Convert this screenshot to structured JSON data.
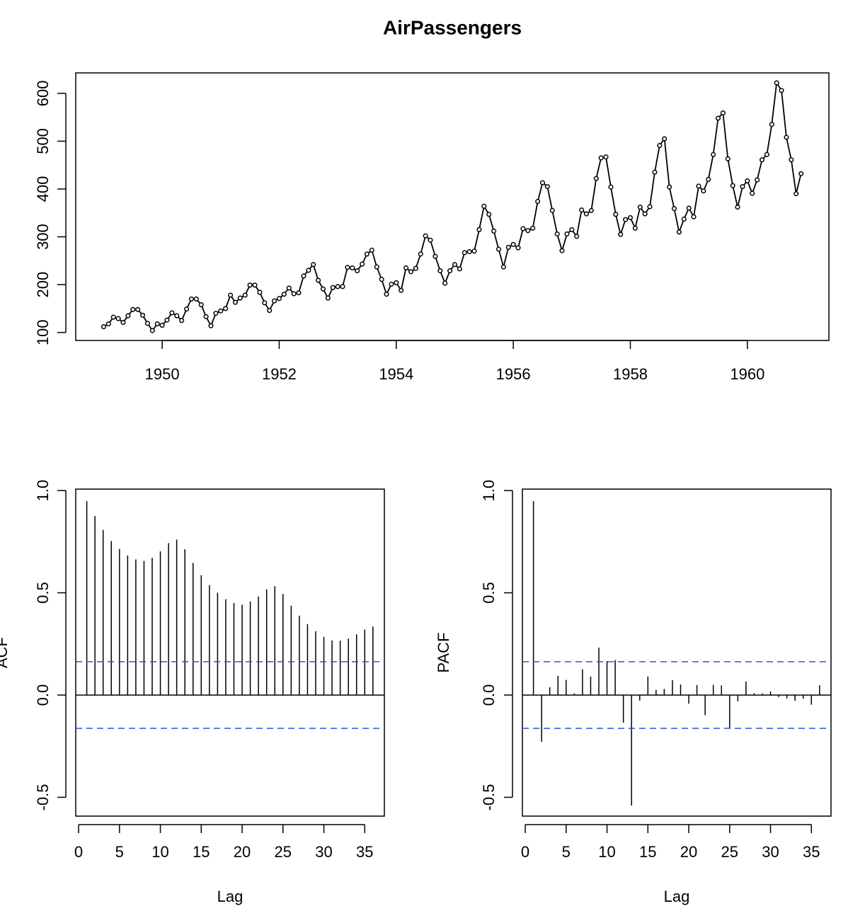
{
  "chart_data": [
    {
      "type": "line",
      "title": "AirPassengers",
      "x": [
        1949.0,
        1949.083,
        1949.167,
        1949.25,
        1949.333,
        1949.417,
        1949.5,
        1949.583,
        1949.667,
        1949.75,
        1949.833,
        1949.917,
        1950.0,
        1950.083,
        1950.167,
        1950.25,
        1950.333,
        1950.417,
        1950.5,
        1950.583,
        1950.667,
        1950.75,
        1950.833,
        1950.917,
        1951.0,
        1951.083,
        1951.167,
        1951.25,
        1951.333,
        1951.417,
        1951.5,
        1951.583,
        1951.667,
        1951.75,
        1951.833,
        1951.917,
        1952.0,
        1952.083,
        1952.167,
        1952.25,
        1952.333,
        1952.417,
        1952.5,
        1952.583,
        1952.667,
        1952.75,
        1952.833,
        1952.917,
        1953.0,
        1953.083,
        1953.167,
        1953.25,
        1953.333,
        1953.417,
        1953.5,
        1953.583,
        1953.667,
        1953.75,
        1953.833,
        1953.917,
        1954.0,
        1954.083,
        1954.167,
        1954.25,
        1954.333,
        1954.417,
        1954.5,
        1954.583,
        1954.667,
        1954.75,
        1954.833,
        1954.917,
        1955.0,
        1955.083,
        1955.167,
        1955.25,
        1955.333,
        1955.417,
        1955.5,
        1955.583,
        1955.667,
        1955.75,
        1955.833,
        1955.917,
        1956.0,
        1956.083,
        1956.167,
        1956.25,
        1956.333,
        1956.417,
        1956.5,
        1956.583,
        1956.667,
        1956.75,
        1956.833,
        1956.917,
        1957.0,
        1957.083,
        1957.167,
        1957.25,
        1957.333,
        1957.417,
        1957.5,
        1957.583,
        1957.667,
        1957.75,
        1957.833,
        1957.917,
        1958.0,
        1958.083,
        1958.167,
        1958.25,
        1958.333,
        1958.417,
        1958.5,
        1958.583,
        1958.667,
        1958.75,
        1958.833,
        1958.917,
        1959.0,
        1959.083,
        1959.167,
        1959.25,
        1959.333,
        1959.417,
        1959.5,
        1959.583,
        1959.667,
        1959.75,
        1959.833,
        1959.917,
        1960.0,
        1960.083,
        1960.167,
        1960.25,
        1960.333,
        1960.417,
        1960.5,
        1960.583,
        1960.667,
        1960.75,
        1960.833,
        1960.917
      ],
      "values": [
        112,
        118,
        132,
        129,
        121,
        135,
        148,
        148,
        136,
        119,
        104,
        118,
        115,
        126,
        141,
        135,
        125,
        149,
        170,
        170,
        158,
        133,
        114,
        140,
        145,
        150,
        178,
        163,
        172,
        178,
        199,
        199,
        184,
        162,
        146,
        166,
        171,
        180,
        193,
        181,
        183,
        218,
        230,
        242,
        209,
        191,
        172,
        194,
        196,
        196,
        236,
        235,
        229,
        243,
        264,
        272,
        237,
        211,
        180,
        201,
        204,
        188,
        235,
        227,
        234,
        264,
        302,
        293,
        259,
        229,
        203,
        229,
        242,
        233,
        267,
        269,
        270,
        315,
        364,
        347,
        312,
        274,
        237,
        278,
        284,
        277,
        317,
        313,
        318,
        374,
        413,
        405,
        355,
        306,
        271,
        306,
        315,
        301,
        356,
        348,
        355,
        422,
        465,
        467,
        404,
        347,
        305,
        336,
        340,
        318,
        362,
        348,
        363,
        435,
        491,
        505,
        404,
        359,
        310,
        337,
        360,
        342,
        406,
        396,
        420,
        472,
        548,
        559,
        463,
        407,
        362,
        405,
        417,
        391,
        419,
        461,
        472,
        535,
        622,
        606,
        508,
        461,
        390,
        432
      ],
      "color": "#000000",
      "xlim": [
        1948.523,
        1961.393
      ],
      "ylim": [
        83.28,
        642.72
      ],
      "xticks": [
        1950,
        1952,
        1954,
        1956,
        1958,
        1960
      ],
      "yticks": [
        100,
        200,
        300,
        400,
        500,
        600
      ]
    },
    {
      "type": "stem",
      "xlabel": "Lag",
      "ylabel": "ACF",
      "x": [
        1,
        2,
        3,
        4,
        5,
        6,
        7,
        8,
        9,
        10,
        11,
        12,
        13,
        14,
        15,
        16,
        17,
        18,
        19,
        20,
        21,
        22,
        23,
        24,
        25,
        26,
        27,
        28,
        29,
        30,
        31,
        32,
        33,
        34,
        35,
        36
      ],
      "values": [
        0.948,
        0.876,
        0.807,
        0.753,
        0.714,
        0.682,
        0.663,
        0.656,
        0.671,
        0.703,
        0.743,
        0.76,
        0.713,
        0.646,
        0.586,
        0.538,
        0.5,
        0.469,
        0.45,
        0.442,
        0.457,
        0.482,
        0.517,
        0.532,
        0.494,
        0.437,
        0.388,
        0.347,
        0.312,
        0.285,
        0.267,
        0.266,
        0.276,
        0.297,
        0.32,
        0.335
      ],
      "color": "#000000",
      "ci": 0.163,
      "ci_color": "#2b50e0",
      "xlim": [
        -0.35,
        37.4
      ],
      "ylim": [
        -0.592,
        1.007
      ],
      "xticks": [
        0,
        5,
        10,
        15,
        20,
        25,
        30,
        35
      ],
      "yticks": [
        -0.5,
        {
          "value": 0,
          "label": "0.0"
        },
        0.5,
        {
          "value": 1,
          "label": "1.0"
        }
      ]
    },
    {
      "type": "stem",
      "xlabel": "Lag",
      "ylabel": "PACF",
      "x": [
        1,
        2,
        3,
        4,
        5,
        6,
        7,
        8,
        9,
        10,
        11,
        12,
        13,
        14,
        15,
        16,
        17,
        18,
        19,
        20,
        21,
        22,
        23,
        24,
        25,
        26,
        27,
        28,
        29,
        30,
        31,
        32,
        33,
        34,
        35,
        36
      ],
      "values": [
        0.948,
        -0.229,
        0.038,
        0.094,
        0.074,
        0.008,
        0.126,
        0.09,
        0.232,
        0.166,
        0.171,
        -0.135,
        -0.54,
        -0.027,
        0.091,
        0.025,
        0.03,
        0.073,
        0.052,
        -0.042,
        0.049,
        -0.098,
        0.05,
        0.047,
        -0.16,
        -0.031,
        0.066,
        0.009,
        0.008,
        0.018,
        -0.01,
        -0.017,
        -0.028,
        -0.018,
        -0.047,
        0.048
      ],
      "color": "#000000",
      "ci": 0.163,
      "ci_color": "#2b50e0",
      "xlim": [
        -0.35,
        37.4
      ],
      "ylim": [
        -0.592,
        1.007
      ],
      "xticks": [
        0,
        5,
        10,
        15,
        20,
        25,
        30,
        35
      ],
      "yticks": [
        -0.5,
        {
          "value": 0,
          "label": "0.0"
        },
        0.5,
        {
          "value": 1,
          "label": "1.0"
        }
      ]
    }
  ]
}
